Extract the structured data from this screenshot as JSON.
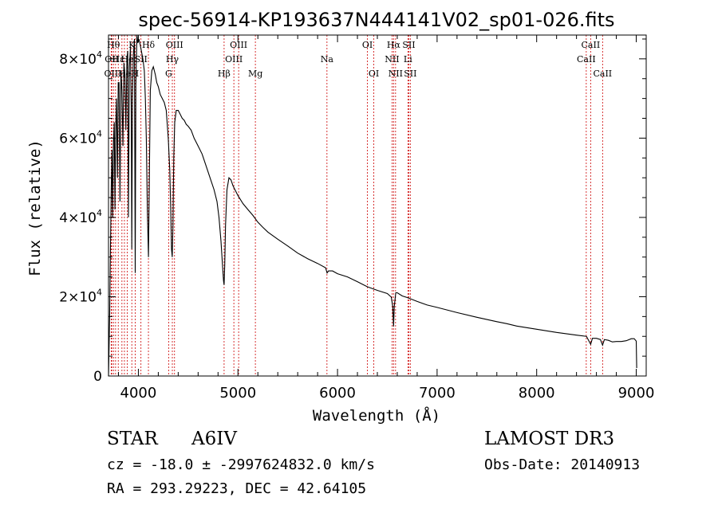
{
  "chart_data": {
    "type": "line",
    "title": "spec-56914-KP193637N444141V02_sp01-026.fits",
    "xlabel": "Wavelength (Å)",
    "ylabel": "Flux (relative)",
    "xlim": [
      3700,
      9100
    ],
    "ylim": [
      0,
      86000
    ],
    "x_ticks": [
      4000,
      5000,
      6000,
      7000,
      8000,
      9000
    ],
    "x_tick_labels": [
      "4000",
      "5000",
      "6000",
      "7000",
      "8000",
      "9000"
    ],
    "y_ticks": [
      0,
      20000,
      40000,
      60000,
      80000
    ],
    "y_tick_labels": [
      {
        "mantissa": "0",
        "exponent": ""
      },
      {
        "mantissa": "2×10",
        "exponent": "4"
      },
      {
        "mantissa": "4×10",
        "exponent": "4"
      },
      {
        "mantissa": "6×10",
        "exponent": "4"
      },
      {
        "mantissa": "8×10",
        "exponent": "4"
      }
    ],
    "line_color": "#000000",
    "marker_color": "#cc0000",
    "spectrum": {
      "x": [
        3700,
        3705,
        3712,
        3720,
        3728,
        3735,
        3742,
        3750,
        3758,
        3765,
        3772,
        3780,
        3790,
        3798,
        3806,
        3815,
        3825,
        3835,
        3845,
        3855,
        3865,
        3875,
        3885,
        3893,
        3900,
        3910,
        3920,
        3928,
        3934,
        3940,
        3950,
        3960,
        3968,
        3975,
        3985,
        3995,
        4005,
        4015,
        4030,
        4045,
        4060,
        4070,
        4080,
        4090,
        4101,
        4110,
        4120,
        4135,
        4150,
        4170,
        4185,
        4200,
        4220,
        4240,
        4260,
        4280,
        4300,
        4315,
        4325,
        4333,
        4340,
        4347,
        4355,
        4365,
        4380,
        4400,
        4420,
        4440,
        4460,
        4480,
        4500,
        4530,
        4560,
        4600,
        4640,
        4680,
        4720,
        4760,
        4790,
        4810,
        4830,
        4845,
        4855,
        4861,
        4867,
        4875,
        4890,
        4910,
        4930,
        4950,
        4970,
        5000,
        5050,
        5100,
        5150,
        5200,
        5250,
        5300,
        5400,
        5500,
        5600,
        5700,
        5800,
        5880,
        5895,
        5910,
        5950,
        6000,
        6100,
        6200,
        6300,
        6400,
        6500,
        6540,
        6555,
        6563,
        6570,
        6585,
        6600,
        6650,
        6700,
        6800,
        6900,
        7000,
        7200,
        7400,
        7600,
        7700,
        7800,
        8000,
        8200,
        8400,
        8500,
        8542,
        8560,
        8600,
        8640,
        8662,
        8680,
        8720,
        8760,
        8800,
        8850,
        8900,
        8950,
        8980,
        9000,
        9005
      ],
      "y": [
        0,
        6000,
        16000,
        33000,
        48000,
        57000,
        40000,
        59000,
        64000,
        42000,
        62000,
        70000,
        50000,
        74000,
        74000,
        44000,
        77000,
        72000,
        58000,
        79000,
        76000,
        62000,
        80000,
        82000,
        40000,
        78000,
        83000,
        68000,
        32000,
        70000,
        81000,
        85000,
        26000,
        73000,
        86000,
        84000,
        85000,
        84000,
        82000,
        80000,
        77000,
        70000,
        60000,
        42000,
        30000,
        50000,
        72000,
        77000,
        78000,
        76000,
        74000,
        73000,
        71000,
        70000,
        69000,
        67000,
        60000,
        52000,
        42000,
        32000,
        30000,
        38000,
        55000,
        64000,
        67000,
        67000,
        66000,
        65000,
        64500,
        63500,
        63000,
        62000,
        60000,
        58000,
        56000,
        53000,
        50000,
        47000,
        44000,
        40000,
        34000,
        28000,
        24000,
        23000,
        28000,
        38000,
        47000,
        50000,
        49500,
        48000,
        47000,
        45500,
        43500,
        42000,
        40500,
        38800,
        37500,
        36300,
        34500,
        32800,
        31000,
        29600,
        28400,
        27300,
        26000,
        26500,
        26500,
        25800,
        25000,
        23800,
        22500,
        21600,
        20800,
        19900,
        17500,
        12500,
        17500,
        21000,
        21000,
        20200,
        19800,
        18800,
        17900,
        17300,
        16000,
        14800,
        13700,
        13200,
        12600,
        11800,
        11000,
        10300,
        10000,
        8000,
        9500,
        9500,
        9200,
        7800,
        9200,
        9000,
        8600,
        8700,
        8700,
        8900,
        9400,
        9400,
        8800,
        2000
      ]
    },
    "lines": [
      {
        "w": 3750,
        "label": "Hθ",
        "row": 0
      },
      {
        "w": 3771,
        "label": "",
        "row": -1
      },
      {
        "w": 3798,
        "label": "Hε",
        "row": 1
      },
      {
        "w": 3835,
        "label": "",
        "row": -1
      },
      {
        "w": 3889,
        "label": "He",
        "row": 1
      },
      {
        "w": 3934,
        "label": "K",
        "row": 0
      },
      {
        "w": 3968,
        "label": "H",
        "row": 2
      },
      {
        "w": 4026,
        "label": "SII",
        "row": 1
      },
      {
        "w": 4101,
        "label": "Hδ",
        "row": 0
      },
      {
        "w": 3727,
        "label": "OII",
        "row": 2
      },
      {
        "w": 3733,
        "label": "OII",
        "row": 1
      },
      {
        "w": 3860,
        "label": "He",
        "row": 2
      },
      {
        "w": 4304,
        "label": "G",
        "row": 2
      },
      {
        "w": 4341,
        "label": "Hγ",
        "row": 1
      },
      {
        "w": 4363,
        "label": "OIII",
        "row": 0
      },
      {
        "w": 4861,
        "label": "Hβ",
        "row": 2
      },
      {
        "w": 4959,
        "label": "OIII",
        "row": 1
      },
      {
        "w": 5007,
        "label": "OIII",
        "row": 0
      },
      {
        "w": 5175,
        "label": "Mg",
        "row": 2
      },
      {
        "w": 5894,
        "label": "Na",
        "row": 1
      },
      {
        "w": 6300,
        "label": "OI",
        "row": 0
      },
      {
        "w": 6364,
        "label": "OI",
        "row": 2
      },
      {
        "w": 6548,
        "label": "NII",
        "row": 1
      },
      {
        "w": 6563,
        "label": "Hα",
        "row": 0
      },
      {
        "w": 6583,
        "label": "NII",
        "row": 2
      },
      {
        "w": 6707,
        "label": "Li",
        "row": 1
      },
      {
        "w": 6716,
        "label": "SII",
        "row": 0
      },
      {
        "w": 6731,
        "label": "SII",
        "row": 2
      },
      {
        "w": 8498,
        "label": "CaII",
        "row": 1
      },
      {
        "w": 8542,
        "label": "CaII",
        "row": 0
      },
      {
        "w": 8662,
        "label": "CaII",
        "row": 2
      }
    ]
  },
  "info": {
    "object_class": "STAR",
    "subclass": "A6IV",
    "survey": "LAMOST DR3",
    "redshift_line": "cz = -18.0 ± -2997624832.0 km/s",
    "obs_date_line": "Obs-Date: 20140913",
    "coords_line": "RA = 293.29223, DEC =  42.64105"
  }
}
